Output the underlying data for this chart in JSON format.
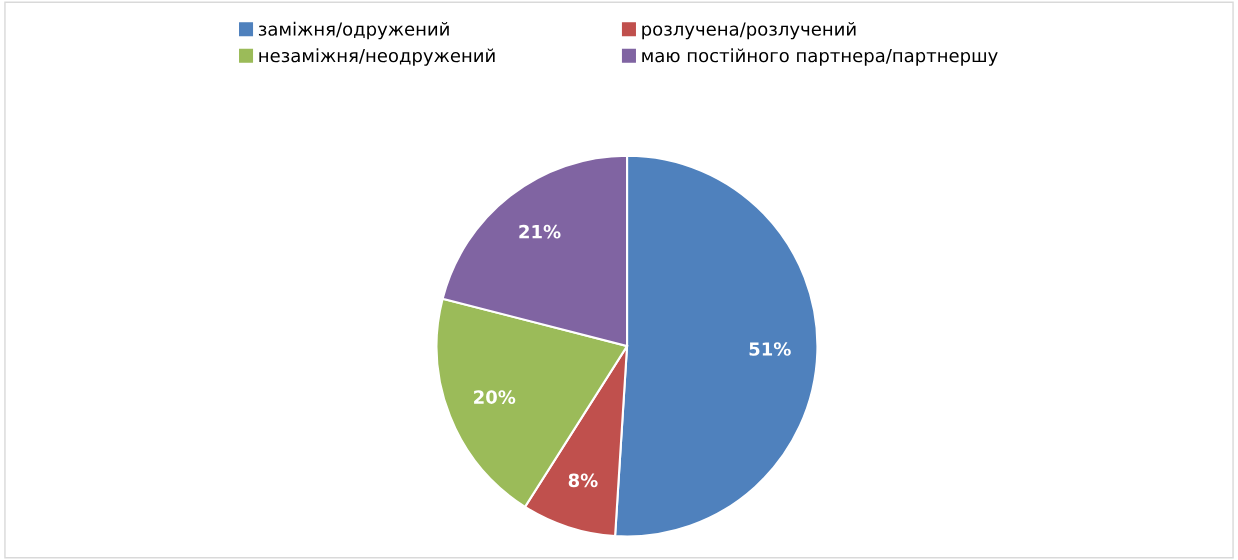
{
  "chart_data": {
    "type": "pie",
    "categories": [
      "заміжня/одружений",
      "розлучена/розлучений",
      "незаміжня/неодружений",
      "маю постійного партнера/партнершу"
    ],
    "values": [
      51,
      8,
      20,
      21
    ],
    "colors": [
      "#4f81bd",
      "#c0504d",
      "#9bbb59",
      "#8064a2"
    ],
    "value_labels": [
      "51%",
      "8%",
      "20%",
      "21%"
    ],
    "legend": "top"
  }
}
